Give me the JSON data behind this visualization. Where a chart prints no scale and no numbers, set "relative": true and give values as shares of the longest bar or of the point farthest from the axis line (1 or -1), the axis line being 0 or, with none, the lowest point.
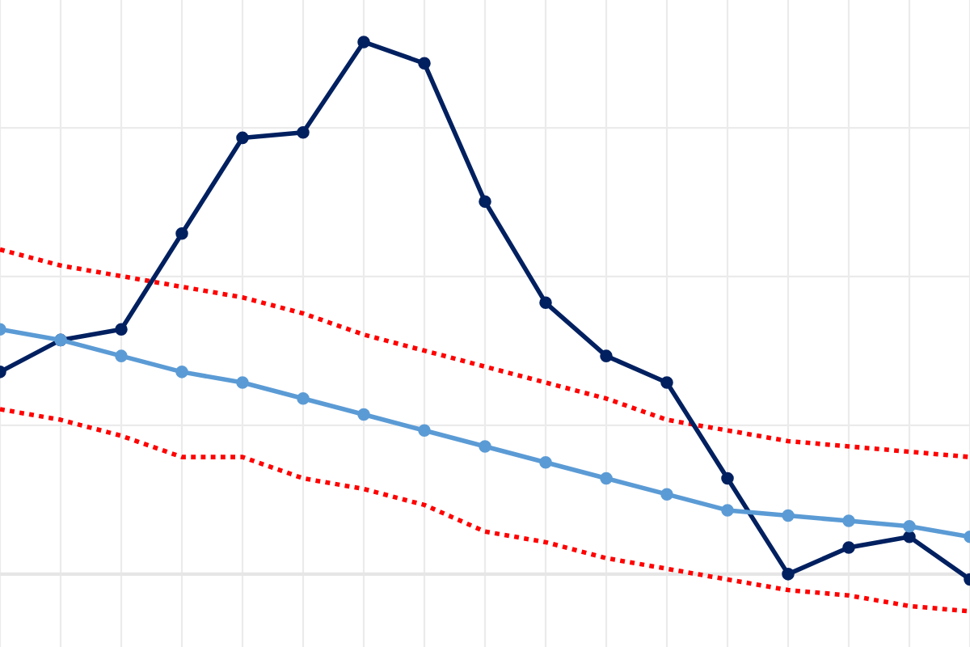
{
  "chart_data": {
    "type": "line",
    "relative": true,
    "grid": true,
    "tick_labels": false,
    "categories": [
      null,
      null,
      null,
      null,
      null,
      null,
      null,
      null,
      null,
      null,
      null,
      null,
      null,
      null,
      null,
      null,
      null
    ],
    "series": [
      {
        "color": "#ff0000",
        "line_style": "dotted",
        "marker": "none",
        "values": [
          0.61,
          0.58,
          0.56,
          0.54,
          0.52,
          0.49,
          0.45,
          0.42,
          0.39,
          0.36,
          0.33,
          0.29,
          0.27,
          0.25,
          0.24,
          0.23,
          0.22
        ]
      },
      {
        "color": "#ff0000",
        "line_style": "dotted",
        "marker": "none",
        "values": [
          0.31,
          0.29,
          0.26,
          0.22,
          0.22,
          0.18,
          0.16,
          0.13,
          0.08,
          0.06,
          0.03,
          0.01,
          -0.01,
          -0.03,
          -0.04,
          -0.06,
          -0.07
        ]
      },
      {
        "color": "#002060",
        "line_style": "solid",
        "marker": "circle",
        "values": [
          0.38,
          0.44,
          0.46,
          0.64,
          0.82,
          0.83,
          1,
          0.96,
          0.7,
          0.51,
          0.41,
          0.36,
          0.18,
          0.0,
          0.05,
          0.07,
          -0.01
        ]
      },
      {
        "color": "#5b9bd5",
        "line_style": "solid",
        "marker": "circle",
        "values": [
          0.46,
          0.44,
          0.41,
          0.38,
          0.36,
          0.33,
          0.3,
          0.27,
          0.24,
          0.21,
          0.18,
          0.15,
          0.12,
          0.11,
          0.1,
          0.09,
          0.07
        ]
      }
    ]
  }
}
